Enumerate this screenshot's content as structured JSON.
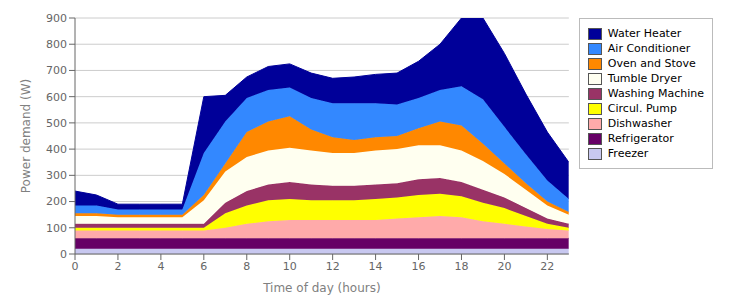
{
  "chart_data": {
    "type": "area",
    "title": "",
    "xlabel": "Time of day (hours)",
    "ylabel": "Power demand (W)",
    "stacked": true,
    "grid": "y",
    "legend": "right",
    "x": [
      0,
      1,
      2,
      3,
      4,
      5,
      6,
      7,
      8,
      9,
      10,
      11,
      12,
      13,
      14,
      15,
      16,
      17,
      18,
      19,
      20,
      21,
      22,
      23
    ],
    "xlim": [
      0,
      23
    ],
    "xticks": [
      0,
      2,
      4,
      6,
      8,
      10,
      12,
      14,
      16,
      18,
      20,
      22
    ],
    "ylim": [
      0,
      900
    ],
    "yticks": [
      0,
      100,
      200,
      300,
      400,
      500,
      600,
      700,
      800,
      900
    ],
    "series": [
      {
        "name": "Freezer",
        "color": "#c8c8f0",
        "values": [
          20,
          20,
          20,
          20,
          20,
          20,
          20,
          20,
          20,
          20,
          20,
          20,
          20,
          20,
          20,
          20,
          20,
          20,
          20,
          20,
          20,
          20,
          20,
          20
        ]
      },
      {
        "name": "Refrigerator",
        "color": "#660066",
        "values": [
          40,
          40,
          40,
          40,
          40,
          40,
          40,
          40,
          40,
          40,
          40,
          40,
          40,
          40,
          40,
          40,
          40,
          40,
          40,
          40,
          40,
          40,
          40,
          40
        ]
      },
      {
        "name": "Dishwasher",
        "color": "#ffaaaa",
        "values": [
          30,
          30,
          30,
          30,
          30,
          30,
          30,
          40,
          55,
          65,
          70,
          70,
          70,
          70,
          70,
          75,
          80,
          85,
          80,
          65,
          55,
          45,
          35,
          30
        ]
      },
      {
        "name": "Circul. Pump",
        "color": "#ffff00",
        "values": [
          10,
          10,
          10,
          10,
          10,
          10,
          10,
          55,
          70,
          80,
          80,
          75,
          75,
          75,
          80,
          80,
          85,
          85,
          80,
          70,
          60,
          40,
          20,
          10
        ]
      },
      {
        "name": "Washing Machine",
        "color": "#993366",
        "values": [
          15,
          15,
          15,
          15,
          15,
          15,
          15,
          40,
          55,
          60,
          65,
          60,
          55,
          55,
          55,
          55,
          60,
          60,
          55,
          50,
          40,
          30,
          20,
          15
        ]
      },
      {
        "name": "Tumble Dryer",
        "color": "#fffff0",
        "values": [
          30,
          30,
          25,
          25,
          25,
          25,
          90,
          120,
          130,
          130,
          130,
          130,
          125,
          125,
          130,
          130,
          130,
          125,
          120,
          110,
          90,
          70,
          50,
          35
        ]
      },
      {
        "name": "Oven and Stove",
        "color": "#ff8800",
        "values": [
          10,
          10,
          10,
          10,
          10,
          10,
          20,
          30,
          95,
          110,
          120,
          80,
          60,
          50,
          50,
          50,
          65,
          90,
          95,
          65,
          40,
          25,
          15,
          10
        ]
      },
      {
        "name": "Air Conditioner",
        "color": "#3388ff",
        "values": [
          30,
          30,
          20,
          20,
          20,
          20,
          160,
          160,
          130,
          120,
          110,
          120,
          130,
          140,
          130,
          120,
          115,
          120,
          150,
          170,
          140,
          110,
          80,
          50
        ]
      },
      {
        "name": "Water Heater",
        "color": "#000099",
        "values": [
          55,
          40,
          20,
          20,
          20,
          20,
          215,
          100,
          80,
          90,
          90,
          95,
          95,
          100,
          110,
          120,
          140,
          175,
          260,
          310,
          280,
          230,
          185,
          140
        ]
      }
    ]
  }
}
